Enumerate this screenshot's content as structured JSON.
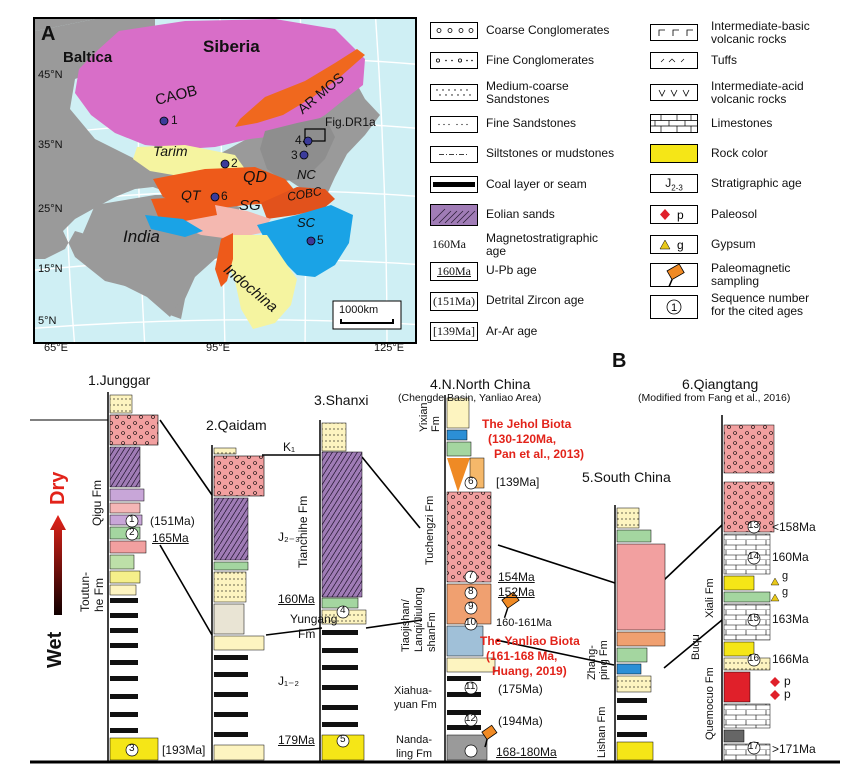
{
  "panel_a": {
    "label": "A",
    "regions": {
      "baltica": "Baltica",
      "siberia": "Siberia",
      "caob": "CAOB",
      "ar_mos": "AR MOS",
      "fig_dr1a": "Fig.DR1a",
      "tarim": "Tarim",
      "nc": "NC",
      "qd": "QD",
      "qt": "QT",
      "sg": "SG",
      "cobc": "COBC",
      "sc": "SC",
      "india": "India",
      "indochina": "Indochina"
    },
    "sites": [
      "1",
      "2",
      "3",
      "4",
      "5",
      "6"
    ],
    "lat_labels": [
      "45°N",
      "35°N",
      "25°N",
      "15°N",
      "5°N"
    ],
    "lon_labels": [
      "65°E",
      "95°E",
      "125°E"
    ],
    "scale_bar": "1000km"
  },
  "legend": {
    "col1": [
      {
        "label": "Coarse Conglomerates",
        "symbol": "coarse-conglomerate"
      },
      {
        "label": "Fine Conglomerates",
        "symbol": "fine-conglomerate"
      },
      {
        "label": "Medium-coarse Sandstones",
        "symbol": "medium-sandstone"
      },
      {
        "label": "Fine Sandstones",
        "symbol": "fine-sandstone"
      },
      {
        "label": "Siltstones or mudstones",
        "symbol": "siltstone"
      },
      {
        "label": "Coal layer or seam",
        "symbol": "coal"
      },
      {
        "label": "Eolian sands",
        "symbol": "eolian"
      },
      {
        "label": "Magnetostratigraphic age",
        "symbol": "160Ma"
      },
      {
        "label": "U-Pb age",
        "symbol": "160Ma"
      },
      {
        "label": "Detrital Zircon age",
        "symbol": "(151Ma)"
      },
      {
        "label": "Ar-Ar age",
        "symbol": "[139Ma]"
      }
    ],
    "col2": [
      {
        "label": "Intermediate-basic volcanic rocks",
        "symbol": "basic-volcanic"
      },
      {
        "label": "Tuffs",
        "symbol": "tuff"
      },
      {
        "label": "Intermediate-acid volcanic rocks",
        "symbol": "acid-volcanic"
      },
      {
        "label": "Limestones",
        "symbol": "limestone"
      },
      {
        "label": "Rock color",
        "symbol": "rock-color"
      },
      {
        "label": "Stratigraphic age",
        "symbol": "J2-3"
      },
      {
        "label": "Paleosol",
        "symbol": "p"
      },
      {
        "label": "Gypsum",
        "symbol": "g"
      },
      {
        "label": "Paleomagnetic sampling",
        "symbol": "sampling"
      },
      {
        "label": "Sequence number for the cited ages",
        "symbol": "1"
      }
    ],
    "colors": {
      "rock_color": "#f5e617",
      "paleosol": "#e0202a",
      "gypsum": "#e8c81a"
    }
  },
  "panel_b": {
    "label": "B",
    "axis": {
      "dry": "Dry",
      "wet": "Wet"
    },
    "sections": {
      "junggar": {
        "title": "1.Junggar",
        "formations": [
          "Qigu Fm",
          "Toutun-",
          "he Fm"
        ],
        "ages": [
          "(151Ma)",
          "165Ma",
          "[193Ma]"
        ]
      },
      "qaidam": {
        "title": "2.Qaidam"
      },
      "shanxi": {
        "title": "3.Shanxi",
        "strat": [
          "K₁",
          "J₂₋₃",
          "J₁₋₂"
        ],
        "formations": [
          "Tianchihe Fm",
          "Yungang",
          "Fm"
        ],
        "ages": [
          "160Ma",
          "179Ma"
        ]
      },
      "north_china": {
        "title": "4.N.North China",
        "subtitle": "(Chengde Basin, Yanliao Area)",
        "formations": [
          "Yixian",
          "Fm",
          "Tuchengzi Fm",
          "Tiaojishan/",
          "Lanqi/Jiulong",
          "shanFm",
          "Xiahua-",
          "yuan Fm",
          "Nanda-",
          "ling Fm"
        ],
        "ages": [
          "[139Ma]",
          "154Ma",
          "152Ma",
          "160-161Ma",
          "(175Ma)",
          "(194Ma)",
          "168-180Ma"
        ],
        "jehol": [
          "The Jehol Biota",
          "(130-120Ma,",
          "Pan et al., 2013)"
        ],
        "yanliao": [
          "The Yanliao Biota",
          "(161-168 Ma,",
          "Huang, 2019)"
        ]
      },
      "south_china": {
        "title": "5.South China",
        "formations": [
          "Zhang-",
          "ping Fm",
          "Lishan Fm"
        ]
      },
      "qiangtang": {
        "title": "6.Qiangtang",
        "subtitle": "(Modified from Fang et al., 2016)",
        "formations": [
          "Xiali Fm",
          "Buqu",
          "Quemocuo Fm"
        ],
        "ages": [
          "<158Ma",
          "160Ma",
          "163Ma",
          "166Ma",
          ">171Ma"
        ],
        "marks": [
          "g",
          "g",
          "p",
          "p"
        ]
      }
    },
    "circles": [
      "1",
      "2",
      "3",
      "4",
      "5",
      "6",
      "7",
      "8",
      "9",
      "10",
      "11",
      "12",
      "13",
      "14",
      "15",
      "16",
      "17"
    ]
  }
}
